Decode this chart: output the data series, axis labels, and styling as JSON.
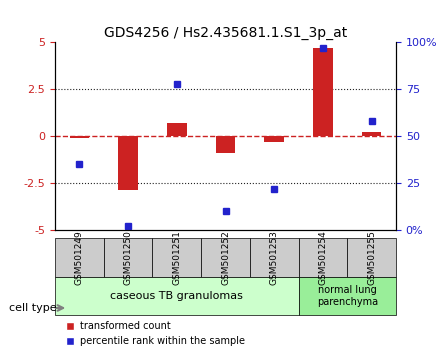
{
  "title": "GDS4256 / Hs2.435681.1.S1_3p_at",
  "samples": [
    "GSM501249",
    "GSM501250",
    "GSM501251",
    "GSM501252",
    "GSM501253",
    "GSM501254",
    "GSM501255"
  ],
  "transformed_counts": [
    -0.08,
    -2.85,
    0.7,
    -0.9,
    -0.3,
    4.7,
    0.2
  ],
  "percentile_ranks": [
    35,
    2,
    78,
    10,
    22,
    97,
    58
  ],
  "ylim_left": [
    -5,
    5
  ],
  "ylim_right": [
    0,
    100
  ],
  "yticks_left": [
    -5,
    -2.5,
    0,
    2.5,
    5
  ],
  "ytick_labels_left": [
    "-5",
    "-2.5",
    "0",
    "2.5",
    "5"
  ],
  "yticks_right": [
    0,
    25,
    50,
    75,
    100
  ],
  "ytick_labels_right": [
    "0%",
    "25",
    "50",
    "75",
    "100%"
  ],
  "bar_color": "#cc2222",
  "scatter_color": "#2222cc",
  "zero_line_color": "#cc2222",
  "dotted_line_color": "#222222",
  "group1_samples": [
    0,
    1,
    2,
    3,
    4
  ],
  "group2_samples": [
    5,
    6
  ],
  "group1_label": "caseous TB granulomas",
  "group2_label": "normal lung\nparenchyma",
  "cell_type_label": "cell type",
  "legend_bar_label": "transformed count",
  "legend_scatter_label": "percentile rank within the sample",
  "bg_color": "#ffffff",
  "plot_bg_color": "#ffffff",
  "grid_color": "#cccccc",
  "group1_color": "#ccffcc",
  "group2_color": "#99ee99",
  "sample_bg_color": "#cccccc"
}
